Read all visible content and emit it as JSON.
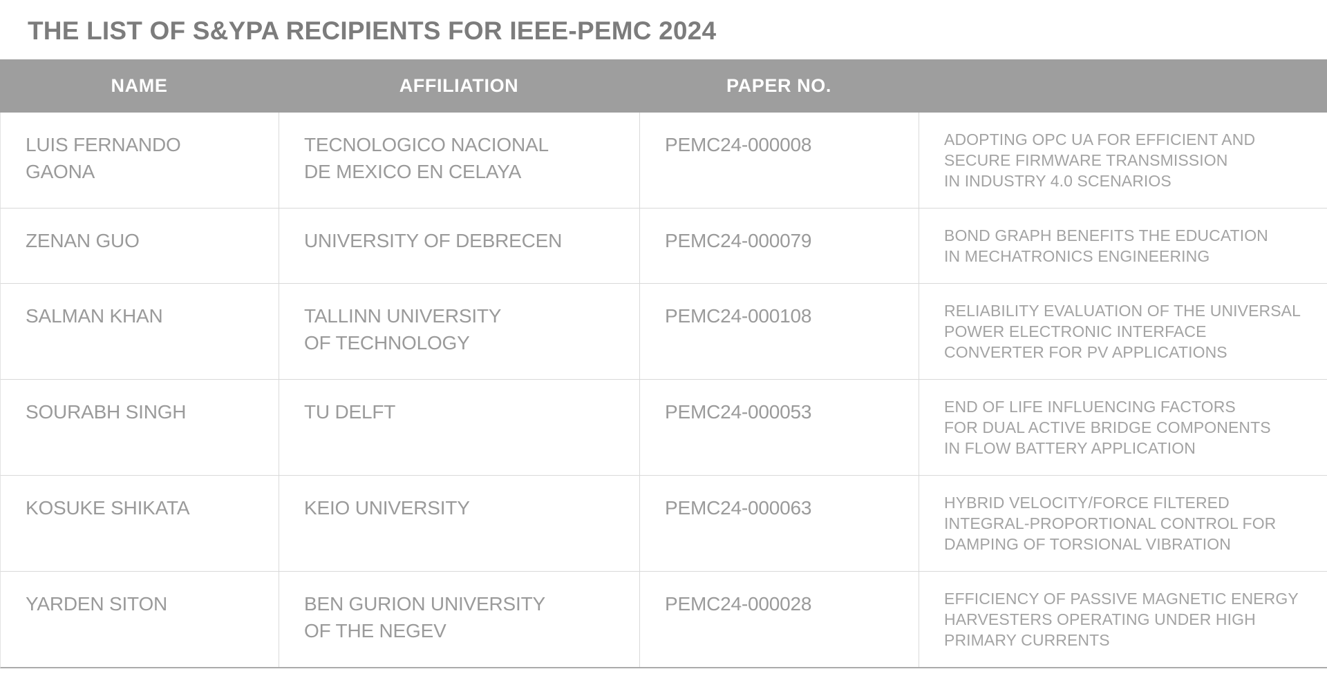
{
  "page": {
    "title": "THE LIST OF S&YPA RECIPIENTS FOR IEEE-PEMC 2024"
  },
  "colors": {
    "header_bar_bg": "#9e9e9e",
    "header_text": "#ffffff",
    "title_text": "#7c7c7c",
    "cell_text": "#9a9a9a",
    "grid_line": "#d9d9d9",
    "bottom_rule": "#ababab"
  },
  "table": {
    "headers": {
      "name": "NAME",
      "affiliation": "AFFILIATION",
      "paper_no": "PAPER NO.",
      "paper_title": ""
    },
    "rows": [
      {
        "name": "LUIS FERNANDO\nGAONA",
        "affiliation": "TECNOLOGICO NACIONAL\nDE MEXICO EN CELAYA",
        "paper_no": "PEMC24-000008",
        "paper_title": "ADOPTING OPC UA FOR EFFICIENT AND\nSECURE FIRMWARE TRANSMISSION\nIN INDUSTRY 4.0 SCENARIOS"
      },
      {
        "name": "ZENAN GUO",
        "affiliation": "UNIVERSITY OF DEBRECEN",
        "paper_no": "PEMC24-000079",
        "paper_title": "BOND GRAPH BENEFITS THE EDUCATION\nIN MECHATRONICS ENGINEERING"
      },
      {
        "name": "SALMAN KHAN",
        "affiliation": "TALLINN UNIVERSITY\nOF TECHNOLOGY",
        "paper_no": "PEMC24-000108",
        "paper_title": "RELIABILITY EVALUATION OF THE UNIVERSAL\nPOWER ELECTRONIC INTERFACE\nCONVERTER FOR PV APPLICATIONS"
      },
      {
        "name": "SOURABH SINGH",
        "affiliation": "TU DELFT",
        "paper_no": "PEMC24-000053",
        "paper_title": "END OF LIFE INFLUENCING FACTORS\nFOR DUAL ACTIVE BRIDGE COMPONENTS\nIN FLOW BATTERY APPLICATION"
      },
      {
        "name": "KOSUKE SHIKATA",
        "affiliation": "KEIO UNIVERSITY",
        "paper_no": "PEMC24-000063",
        "paper_title": "HYBRID VELOCITY/FORCE FILTERED\nINTEGRAL-PROPORTIONAL CONTROL FOR\nDAMPING OF TORSIONAL VIBRATION"
      },
      {
        "name": "YARDEN SITON",
        "affiliation": "BEN GURION UNIVERSITY\nOF THE NEGEV",
        "paper_no": "PEMC24-000028",
        "paper_title": "EFFICIENCY OF PASSIVE MAGNETIC ENERGY\nHARVESTERS OPERATING UNDER HIGH\nPRIMARY CURRENTS"
      }
    ]
  }
}
